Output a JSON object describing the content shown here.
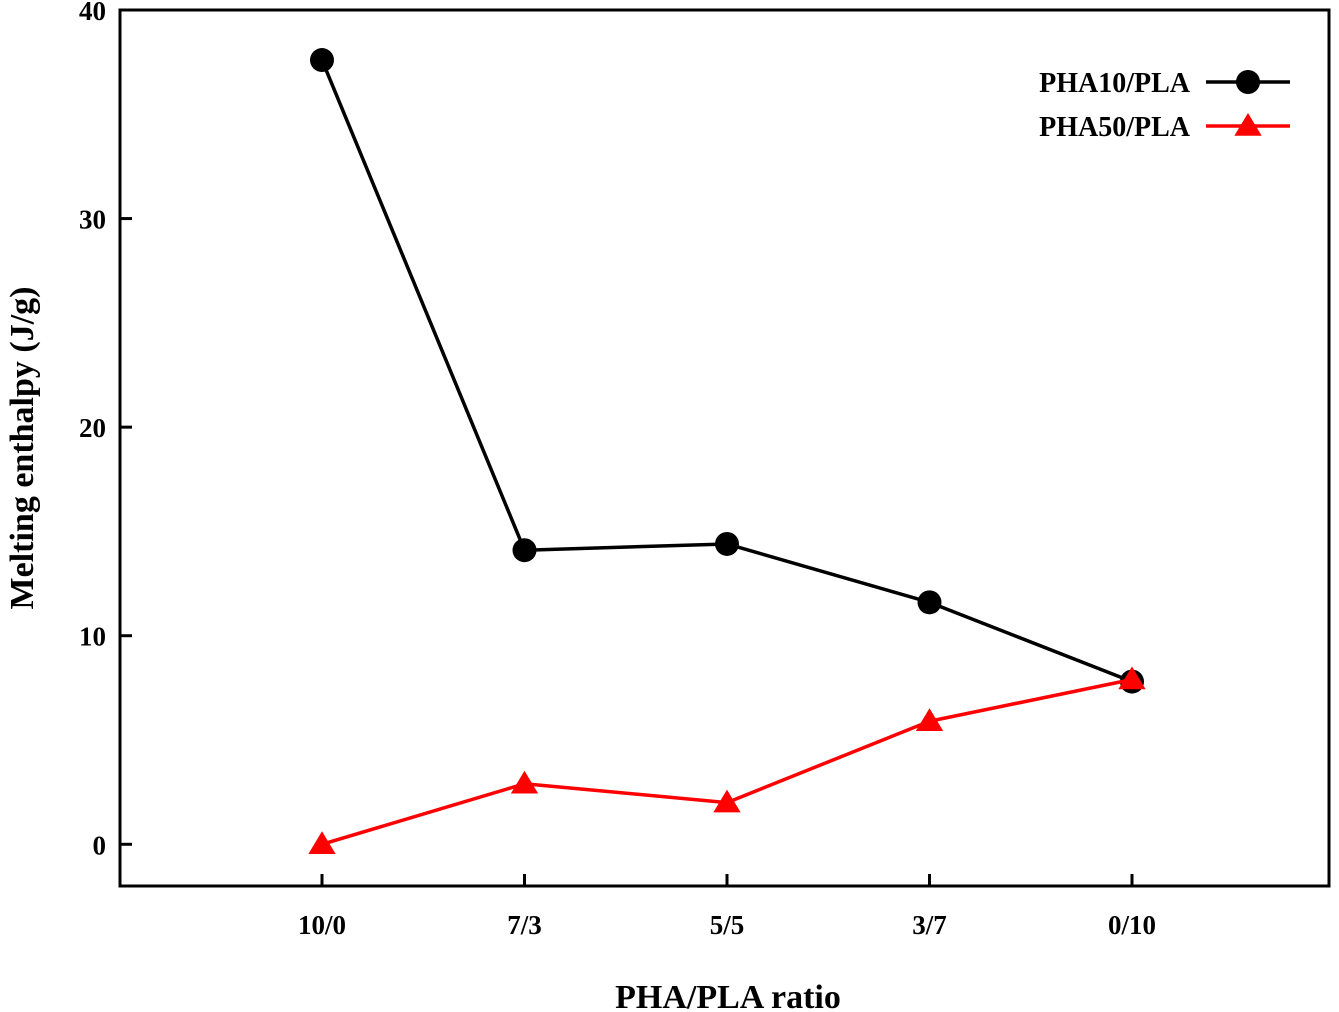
{
  "chart_data": {
    "type": "line",
    "categories": [
      "10/0",
      "7/3",
      "5/5",
      "3/7",
      "0/10"
    ],
    "xlabel": "PHA/PLA ratio",
    "ylabel": "Melting enthalpy (J/g)",
    "ylim": [
      -2,
      40
    ],
    "yticks": [
      0,
      10,
      20,
      30,
      40
    ],
    "grid": false,
    "legend_position": "top-right",
    "series": [
      {
        "name": "PHA10/PLA",
        "marker": "circle",
        "color": "#000000",
        "values": [
          37.6,
          14.1,
          14.4,
          11.6,
          7.8
        ]
      },
      {
        "name": "PHA50/PLA",
        "marker": "triangle",
        "color": "#ff0000",
        "values": [
          0.0,
          2.9,
          2.0,
          5.9,
          7.9
        ]
      }
    ]
  }
}
